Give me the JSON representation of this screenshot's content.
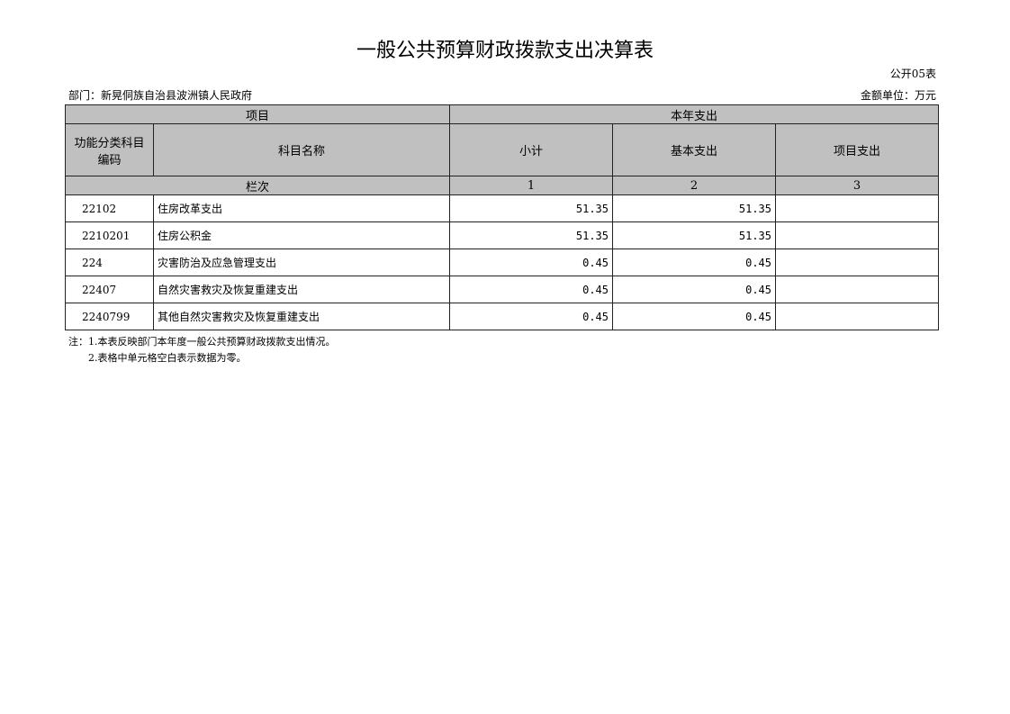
{
  "title": "一般公共预算财政拨款支出决算表",
  "table_code": "公开05表",
  "department": "部门：新晃侗族自治县波洲镇人民政府",
  "unit": "金额单位：万元",
  "headers": {
    "project": "项目",
    "current_year": "本年支出",
    "func_code": "功能分类科目编码",
    "subject_name": "科目名称",
    "subtotal": "小计",
    "basic": "基本支出",
    "project_exp": "项目支出",
    "col_index": "栏次",
    "col1": "1",
    "col2": "2",
    "col3": "3"
  },
  "rows": [
    {
      "code": "22102",
      "name": "住房改革支出",
      "subtotal": "51.35",
      "basic": "51.35",
      "project": ""
    },
    {
      "code": "2210201",
      "name": "住房公积金",
      "subtotal": "51.35",
      "basic": "51.35",
      "project": ""
    },
    {
      "code": "224",
      "name": "灾害防治及应急管理支出",
      "subtotal": "0.45",
      "basic": "0.45",
      "project": ""
    },
    {
      "code": "22407",
      "name": "自然灾害救灾及恢复重建支出",
      "subtotal": "0.45",
      "basic": "0.45",
      "project": ""
    },
    {
      "code": "2240799",
      "name": "其他自然灾害救灾及恢复重建支出",
      "subtotal": "0.45",
      "basic": "0.45",
      "project": ""
    }
  ],
  "notes": [
    "注：1.本表反映部门本年度一般公共预算财政拨款支出情况。",
    "2.表格中单元格空白表示数据为零。"
  ]
}
